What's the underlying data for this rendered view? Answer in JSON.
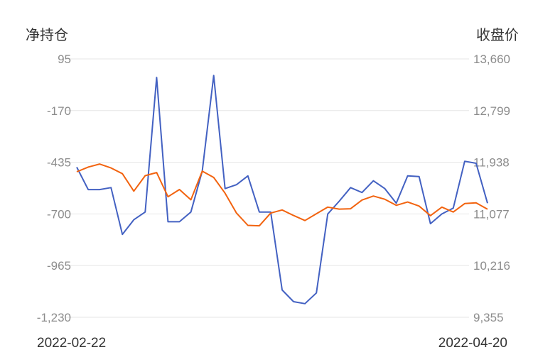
{
  "chart_data": {
    "type": "line",
    "left_axis_title": "净持仓",
    "right_axis_title": "收盘价",
    "x_start_label": "2022-02-22",
    "x_end_label": "2022-04-20",
    "left_ticks": [
      "95",
      "-170",
      "-435",
      "-700",
      "-965",
      "-1,230"
    ],
    "right_ticks": [
      "13,660",
      "12,799",
      "11,938",
      "11,077",
      "10,216",
      "9,355"
    ],
    "ylim_left": [
      -1230,
      95
    ],
    "ylim_right": [
      9355,
      13660
    ],
    "grid": true,
    "legend": "none",
    "series": [
      {
        "axis": "left",
        "color": "#4361c2",
        "values": [
          -460,
          -575,
          -575,
          -565,
          -805,
          -730,
          -690,
          0,
          -740,
          -740,
          -690,
          -480,
          10,
          -570,
          -550,
          -505,
          -690,
          -690,
          -1090,
          -1150,
          -1160,
          -1105,
          -700,
          -635,
          -565,
          -590,
          -530,
          -570,
          -645,
          -505,
          -508,
          -750,
          -700,
          -670,
          -430,
          -440,
          -645
        ]
      },
      {
        "axis": "right",
        "color": "#f2630f",
        "values": [
          11779,
          11858,
          11909,
          11843,
          11748,
          11457,
          11714,
          11767,
          11363,
          11484,
          11312,
          11790,
          11685,
          11422,
          11091,
          10887,
          10880,
          11091,
          11143,
          11051,
          10967,
          11080,
          11191,
          11158,
          11163,
          11309,
          11375,
          11322,
          11220,
          11276,
          11208,
          11049,
          11190,
          11109,
          11250,
          11262,
          11155
        ]
      }
    ]
  }
}
